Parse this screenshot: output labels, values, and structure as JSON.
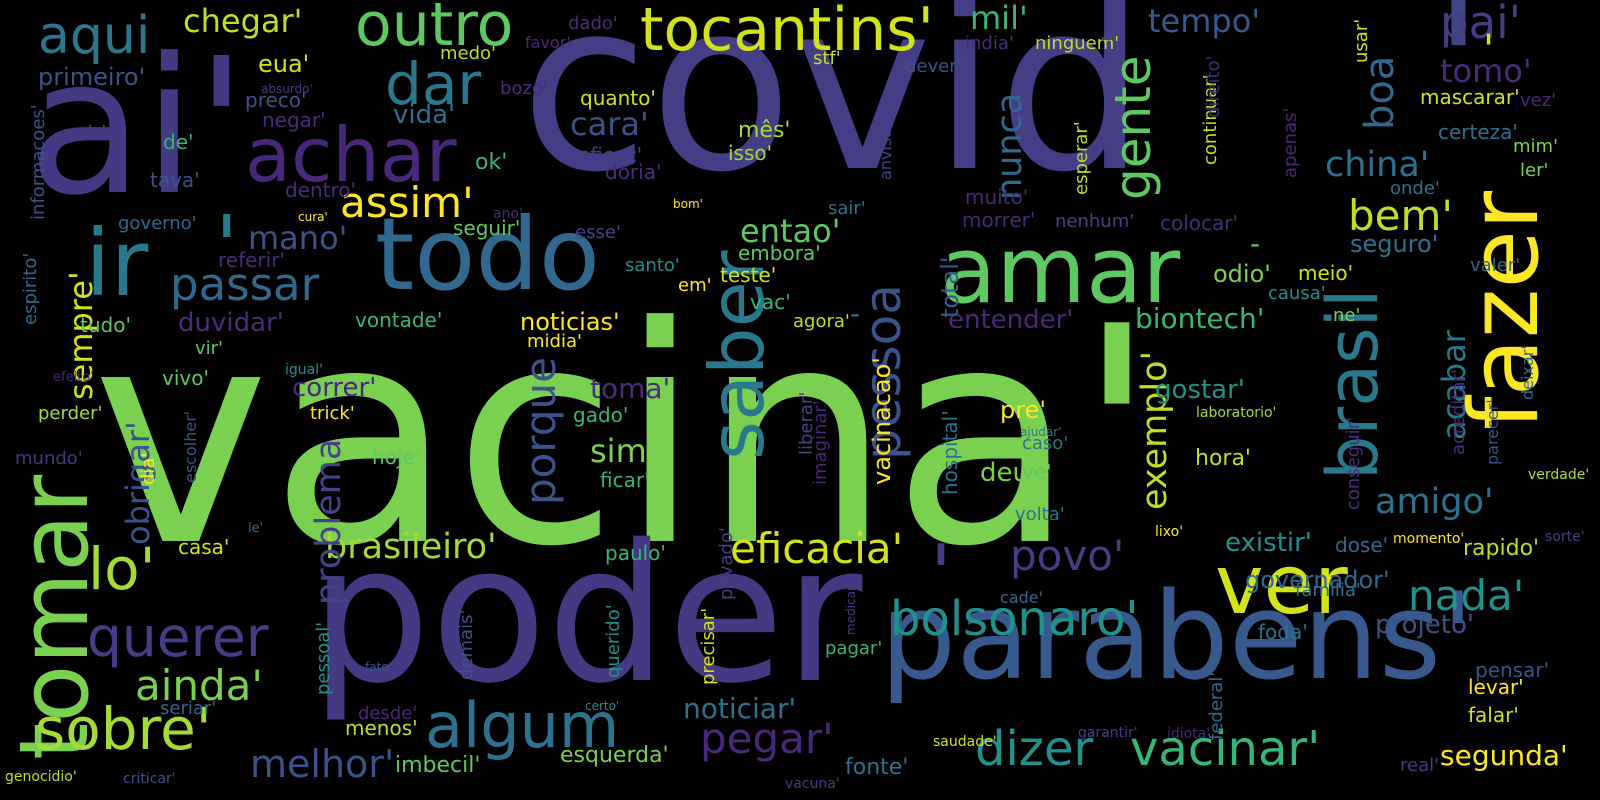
{
  "words": [
    {
      "text": "vacina'",
      "color": "#7ad151"
    },
    {
      "text": "covid",
      "color": "#433e85"
    },
    {
      "text": "ai'",
      "color": "#443983"
    },
    {
      "text": "poder",
      "color": "#443983"
    },
    {
      "text": "parabens'",
      "color": "#38598c"
    },
    {
      "text": "fazer",
      "color": "#fde725"
    },
    {
      "text": "'",
      "color": "#414487"
    },
    {
      "text": "tomar",
      "color": "#7ad151"
    },
    {
      "text": "'",
      "color": "#2a788e"
    },
    {
      "text": "'",
      "color": "#433e85"
    },
    {
      "text": "amar",
      "color": "#5ec962"
    },
    {
      "text": "ir",
      "color": "#2a788e"
    },
    {
      "text": "todo",
      "color": "#31688e"
    },
    {
      "text": "achar",
      "color": "#482878"
    },
    {
      "text": "outro",
      "color": "#5ec962"
    },
    {
      "text": "tocantins'",
      "color": "#d2e21b"
    },
    {
      "text": "aqui",
      "color": "#2a788e"
    },
    {
      "text": "chegar'",
      "color": "#bddf26"
    },
    {
      "text": "dar",
      "color": "#2a788e"
    },
    {
      "text": "saber",
      "color": "#2a788e"
    },
    {
      "text": "pessoa",
      "color": "#3b528b"
    },
    {
      "text": "brasil",
      "color": "#2a788e"
    },
    {
      "text": "boa",
      "color": "#31688e"
    },
    {
      "text": "gente",
      "color": "#5ec962"
    },
    {
      "text": "nunca",
      "color": "#31688e"
    },
    {
      "text": "ver",
      "color": "#d2e21b"
    },
    {
      "text": "lo'",
      "color": "#a5db36"
    },
    {
      "text": "sobre'",
      "color": "#a5db36"
    },
    {
      "text": "algum",
      "color": "#2c728e"
    },
    {
      "text": "querer",
      "color": "#433e85"
    },
    {
      "text": "passar",
      "color": "#31688e"
    },
    {
      "text": "assim'",
      "color": "#fde725"
    },
    {
      "text": "mil'",
      "color": "#35b779"
    },
    {
      "text": "pai'",
      "color": "#433e85"
    },
    {
      "text": "tempo'",
      "color": "#38598c"
    },
    {
      "text": "tomo'",
      "color": "#472d7b"
    },
    {
      "text": "china'",
      "color": "#2c728e"
    },
    {
      "text": "bem'",
      "color": "#bddf26"
    },
    {
      "text": "porque",
      "color": "#3b528b"
    },
    {
      "text": "bolsonaro'",
      "color": "#21918c"
    },
    {
      "text": "eficacia'",
      "color": "#d2e21b"
    },
    {
      "text": "dizer",
      "color": "#21918c"
    },
    {
      "text": "vacinar'",
      "color": "#35b779"
    },
    {
      "text": "povo'",
      "color": "#433e85"
    },
    {
      "text": "nada'",
      "color": "#21918c"
    },
    {
      "text": "amigo'",
      "color": "#2c728e"
    },
    {
      "text": "pegar'",
      "color": "#482878"
    },
    {
      "text": "ainda'",
      "color": "#7ad151"
    },
    {
      "text": "melhor'",
      "color": "#3b528b"
    },
    {
      "text": "brasileiro'",
      "color": "#a5db36"
    },
    {
      "text": "exemplo'",
      "color": "#bddf26"
    },
    {
      "text": "acabar",
      "color": "#2a788e"
    },
    {
      "text": "problema",
      "color": "#414487"
    },
    {
      "text": "sempre'",
      "color": "#d2e21b"
    },
    {
      "text": "obrigar'",
      "color": "#3b528b"
    },
    {
      "text": "entao'",
      "color": "#5ec962"
    },
    {
      "text": "mano'",
      "color": "#3b528b"
    },
    {
      "text": "cara'",
      "color": "#3b528b"
    },
    {
      "text": "sim'",
      "color": "#7ad151"
    },
    {
      "text": "toma'",
      "color": "#472d7b"
    },
    {
      "text": "noticiar'",
      "color": "#2c728e"
    },
    {
      "text": "segunda'",
      "color": "#fde725"
    },
    {
      "text": "biontech'",
      "color": "#35b779"
    },
    {
      "text": "gostar'",
      "color": "#21918c"
    },
    {
      "text": "existir'",
      "color": "#21918c"
    },
    {
      "text": "projeto'",
      "color": "#3b528b"
    },
    {
      "text": "governador'",
      "color": "#31688e"
    },
    {
      "text": "duvidar'",
      "color": "#472d7b"
    },
    {
      "text": "correr'",
      "color": "#482878"
    },
    {
      "text": "entender'",
      "color": "#482878"
    },
    {
      "text": "vida'",
      "color": "#2c728e"
    },
    {
      "text": "deus'",
      "color": "#7ad151"
    },
    {
      "text": "vacinacao'",
      "color": "#fde725"
    },
    {
      "text": "noticias'",
      "color": "#fde725"
    },
    {
      "text": "primeiro'",
      "color": "#3b528b"
    },
    {
      "text": "hora'",
      "color": "#bddf26"
    },
    {
      "text": "rapido'",
      "color": "#bddf26"
    },
    {
      "text": "imbecil'",
      "color": "#5ec962"
    },
    {
      "text": "esquerda'",
      "color": "#7ad151"
    },
    {
      "text": "fonte'",
      "color": "#2c728e"
    },
    {
      "text": "eua'",
      "color": "#d2e21b"
    },
    {
      "text": "quanto'",
      "color": "#d2e21b"
    },
    {
      "text": "mês'",
      "color": "#a5db36"
    },
    {
      "text": "isso'",
      "color": "#a5db36"
    },
    {
      "text": "ok'",
      "color": "#35b779"
    },
    {
      "text": "pre'",
      "color": "#fde725"
    },
    {
      "text": "total'",
      "color": "#38598c"
    },
    {
      "text": "hospital'",
      "color": "#2c728e"
    },
    {
      "text": "seguro'",
      "color": "#2c728e"
    },
    {
      "text": "odio'",
      "color": "#7ad151"
    },
    {
      "text": "meio'",
      "color": "#d2e21b"
    },
    {
      "text": "teste'",
      "color": "#d2e21b"
    },
    {
      "text": "embora'",
      "color": "#5ec962"
    },
    {
      "text": "vac'",
      "color": "#35b779"
    },
    {
      "text": "ficar'",
      "color": "#35b779"
    },
    {
      "text": "gado'",
      "color": "#35b779"
    },
    {
      "text": "paulo'",
      "color": "#35b779"
    },
    {
      "text": "casa'",
      "color": "#d2e21b"
    },
    {
      "text": "certeza'",
      "color": "#2c728e"
    },
    {
      "text": "mascarar'",
      "color": "#d2e21b"
    },
    {
      "text": "colocar'",
      "color": "#472d7b"
    },
    {
      "text": "falar'",
      "color": "#d2e21b"
    },
    {
      "text": "levar'",
      "color": "#fde725"
    },
    {
      "text": "pensar'",
      "color": "#3b528b"
    },
    {
      "text": "foda'",
      "color": "#2c728e"
    },
    {
      "text": "dose'",
      "color": "#31688e"
    },
    {
      "text": "preco'",
      "color": "#3b528b"
    },
    {
      "text": "negar'",
      "color": "#472d7b"
    },
    {
      "text": "caso'",
      "color": "#2c728e"
    },
    {
      "text": "ve'",
      "color": "#5ec962"
    },
    {
      "text": "volta'",
      "color": "#2c728e"
    },
    {
      "text": "vivo'",
      "color": "#5ec962"
    },
    {
      "text": "tudo'",
      "color": "#5ec962"
    },
    {
      "text": "vontade'",
      "color": "#35b779"
    },
    {
      "text": "hoje'",
      "color": "#5ec962"
    },
    {
      "text": "menos'",
      "color": "#bddf26"
    },
    {
      "text": "seguir'",
      "color": "#5ec962"
    },
    {
      "text": "esse'",
      "color": "#414487"
    },
    {
      "text": "santo'",
      "color": "#21918c"
    },
    {
      "text": "agora'",
      "color": "#bddf26"
    },
    {
      "text": "eficaz'",
      "color": "#433e85"
    },
    {
      "text": "doria'",
      "color": "#472d7b"
    },
    {
      "text": "dentro'",
      "color": "#472d7b"
    },
    {
      "text": "muito'",
      "color": "#482878"
    },
    {
      "text": "morrer'",
      "color": "#482878"
    },
    {
      "text": "nenhum'",
      "color": "#414487"
    },
    {
      "text": "unir'",
      "color": "#443983"
    },
    {
      "text": "de'",
      "color": "#35b779"
    },
    {
      "text": "tava'",
      "color": "#3b528b"
    },
    {
      "text": "referir'",
      "color": "#472d7b"
    },
    {
      "text": "dado'",
      "color": "#472d7b"
    },
    {
      "text": "favor'",
      "color": "#482878"
    },
    {
      "text": "medo'",
      "color": "#bddf26"
    },
    {
      "text": "bozo'",
      "color": "#472d7b"
    },
    {
      "text": "stf'",
      "color": "#bddf26"
    },
    {
      "text": "dever'",
      "color": "#3b528b"
    },
    {
      "text": "india'",
      "color": "#472d7b"
    },
    {
      "text": "ninguem'",
      "color": "#bddf26"
    },
    {
      "text": "usar'",
      "color": "#d2e21b"
    },
    {
      "text": "vez'",
      "color": "#482878"
    },
    {
      "text": "mim'",
      "color": "#7ad151"
    },
    {
      "text": "ler'",
      "color": "#7ad151"
    },
    {
      "text": "onde'",
      "color": "#2c728e"
    },
    {
      "text": "sair'",
      "color": "#2c728e"
    },
    {
      "text": "governo'",
      "color": "#31688e"
    },
    {
      "text": "ne'",
      "color": "#7ad151"
    },
    {
      "text": "causa'",
      "color": "#21918c"
    },
    {
      "text": "valer'",
      "color": "#31688e"
    },
    {
      "text": "perder'",
      "color": "#a5db36"
    },
    {
      "text": "vir'",
      "color": "#5ec962"
    },
    {
      "text": "mundo'",
      "color": "#443983"
    },
    {
      "text": "em'",
      "color": "#fde725"
    },
    {
      "text": "midia'",
      "color": "#fde725"
    },
    {
      "text": "trick'",
      "color": "#fde725"
    },
    {
      "text": "igual'",
      "color": "#21918c"
    },
    {
      "text": "seriar'",
      "color": "#31688e"
    },
    {
      "text": "cade'",
      "color": "#31688e"
    },
    {
      "text": "familia'",
      "color": "#2c728e"
    },
    {
      "text": "pagar'",
      "color": "#35b779"
    },
    {
      "text": "querido'",
      "color": "#21918c"
    },
    {
      "text": "demais'",
      "color": "#3b528b"
    },
    {
      "text": "pessoal'",
      "color": "#21918c"
    },
    {
      "text": "desde'",
      "color": "#482878"
    },
    {
      "text": "real'",
      "color": "#433e85"
    },
    {
      "text": "federal'",
      "color": "#31688e"
    },
    {
      "text": "informacoes'",
      "color": "#3b528b"
    },
    {
      "text": "espirito'",
      "color": "#31688e"
    },
    {
      "text": "dia'",
      "color": "#fde725"
    },
    {
      "text": "esperar'",
      "color": "#bddf26"
    },
    {
      "text": "continuar'",
      "color": "#bddf26"
    },
    {
      "text": "direito'",
      "color": "#482878"
    },
    {
      "text": "apenas'",
      "color": "#482878"
    },
    {
      "text": "anvisa'",
      "color": "#414487"
    },
    {
      "text": "liberar'",
      "color": "#414487"
    },
    {
      "text": "imaginar'",
      "color": "#482878"
    },
    {
      "text": "privado'",
      "color": "#433e85"
    },
    {
      "text": "precisar'",
      "color": "#d2e21b"
    },
    {
      "text": "conseguir'",
      "color": "#472d7b"
    },
    {
      "text": "acreditar'",
      "color": "#472d7b"
    },
    {
      "text": "parecer'",
      "color": "#3b528b"
    },
    {
      "text": "deixar'",
      "color": "#31688e"
    },
    {
      "text": "escolher'",
      "color": "#3b528b"
    },
    {
      "text": "genocidio'",
      "color": "#bddf26"
    },
    {
      "text": "criticar'",
      "color": "#3b528b"
    },
    {
      "text": "vacuna'",
      "color": "#433e85"
    },
    {
      "text": "saudade'",
      "color": "#d2e21b"
    },
    {
      "text": "garantir'",
      "color": "#433e85"
    },
    {
      "text": "idiota'",
      "color": "#482878"
    },
    {
      "text": "lixo'",
      "color": "#fde725"
    },
    {
      "text": "momento'",
      "color": "#fde725"
    },
    {
      "text": "sorte'",
      "color": "#433e85"
    },
    {
      "text": "verdade'",
      "color": "#a5db36"
    },
    {
      "text": "laboratorio'",
      "color": "#a5db36"
    },
    {
      "text": "ajudar'",
      "color": "#2c728e"
    },
    {
      "text": "absurdo'",
      "color": "#433e85"
    },
    {
      "text": "cura'",
      "color": "#fde725"
    },
    {
      "text": "bom'",
      "color": "#fde725"
    },
    {
      "text": "ano'",
      "color": "#482878"
    },
    {
      "text": "efeito'",
      "color": "#482878"
    },
    {
      "text": "le'",
      "color": "#31688e"
    },
    {
      "text": "fato'",
      "color": "#3b528b"
    },
    {
      "text": "certo'",
      "color": "#21918c"
    },
    {
      "text": "medicar'",
      "color": "#433e85"
    },
    {
      "text": "'",
      "color": "#d2e21b"
    },
    {
      "text": "-",
      "color": "#433e85"
    },
    {
      "text": "-",
      "color": "#5ec962"
    },
    {
      "text": "-",
      "color": "#2c728e"
    }
  ]
}
